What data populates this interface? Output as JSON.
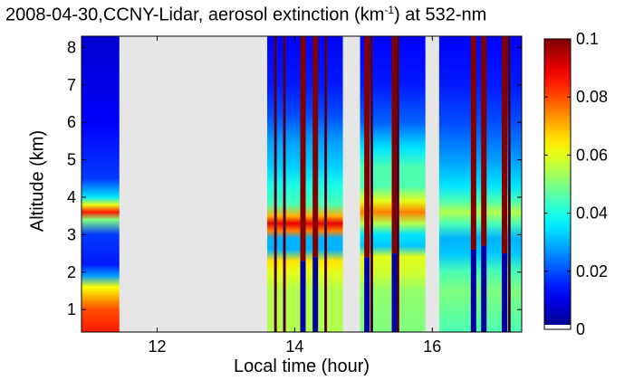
{
  "chart_data": {
    "type": "heatmap",
    "title_parts": {
      "prefix": "2008-04-30,CCNY-Lidar, aerosol extinction (km",
      "superscript": "-1",
      "suffix": ") at 532-nm"
    },
    "xlabel": "Local time (hour)",
    "ylabel": "Altitude (km)",
    "xlim": [
      10.9,
      17.3
    ],
    "ylim": [
      0.4,
      8.3
    ],
    "x_ticks": [
      12,
      14,
      16
    ],
    "y_ticks": [
      1,
      2,
      3,
      4,
      5,
      6,
      7,
      8
    ],
    "colorbar": {
      "range": [
        0,
        0.1
      ],
      "ticks": [
        0,
        0.02,
        0.04,
        0.06,
        0.08,
        0.1
      ],
      "tick_labels": [
        "0",
        "0.02",
        "0.04",
        "0.06",
        "0.08",
        "0.1"
      ],
      "colormap": "jet",
      "below_range_color": "#ffffff"
    },
    "no_data_color": "#e6e6e6",
    "data_segments": [
      {
        "x_start": 10.9,
        "x_end": 11.45,
        "layers": [
          {
            "alt": 0.4,
            "value": 0.085
          },
          {
            "alt": 1.0,
            "value": 0.08
          },
          {
            "alt": 1.6,
            "value": 0.062
          },
          {
            "alt": 1.9,
            "value": 0.028
          },
          {
            "alt": 2.2,
            "value": 0.015
          },
          {
            "alt": 3.0,
            "value": 0.018
          },
          {
            "alt": 3.4,
            "value": 0.05
          },
          {
            "alt": 3.6,
            "value": 0.085
          },
          {
            "alt": 3.8,
            "value": 0.06
          },
          {
            "alt": 4.0,
            "value": 0.035
          },
          {
            "alt": 4.5,
            "value": 0.018
          },
          {
            "alt": 6.0,
            "value": 0.012
          },
          {
            "alt": 8.3,
            "value": 0.008
          }
        ]
      },
      {
        "x_start": 13.6,
        "x_end": 14.7,
        "layers": [
          {
            "alt": 0.4,
            "value": 0.055
          },
          {
            "alt": 1.5,
            "value": 0.055
          },
          {
            "alt": 2.0,
            "value": 0.06
          },
          {
            "alt": 2.3,
            "value": 0.065
          },
          {
            "alt": 2.6,
            "value": 0.03
          },
          {
            "alt": 2.9,
            "value": 0.03
          },
          {
            "alt": 3.1,
            "value": 0.075
          },
          {
            "alt": 3.3,
            "value": 0.09
          },
          {
            "alt": 3.5,
            "value": 0.07
          },
          {
            "alt": 3.8,
            "value": 0.045
          },
          {
            "alt": 4.3,
            "value": 0.04
          },
          {
            "alt": 4.8,
            "value": 0.033
          },
          {
            "alt": 5.5,
            "value": 0.028
          },
          {
            "alt": 6.2,
            "value": 0.02
          },
          {
            "alt": 7.0,
            "value": 0.015
          },
          {
            "alt": 8.3,
            "value": 0.012
          }
        ]
      },
      {
        "x_start": 14.95,
        "x_end": 15.9,
        "layers": [
          {
            "alt": 0.4,
            "value": 0.05
          },
          {
            "alt": 1.5,
            "value": 0.052
          },
          {
            "alt": 2.0,
            "value": 0.058
          },
          {
            "alt": 2.4,
            "value": 0.06
          },
          {
            "alt": 2.7,
            "value": 0.032
          },
          {
            "alt": 3.0,
            "value": 0.035
          },
          {
            "alt": 3.3,
            "value": 0.055
          },
          {
            "alt": 3.6,
            "value": 0.075
          },
          {
            "alt": 3.9,
            "value": 0.06
          },
          {
            "alt": 4.3,
            "value": 0.045
          },
          {
            "alt": 4.8,
            "value": 0.045
          },
          {
            "alt": 5.3,
            "value": 0.035
          },
          {
            "alt": 6.0,
            "value": 0.022
          },
          {
            "alt": 7.0,
            "value": 0.015
          },
          {
            "alt": 8.3,
            "value": 0.012
          }
        ]
      },
      {
        "x_start": 16.1,
        "x_end": 17.3,
        "layers": [
          {
            "alt": 0.4,
            "value": 0.045
          },
          {
            "alt": 1.5,
            "value": 0.05
          },
          {
            "alt": 2.0,
            "value": 0.045
          },
          {
            "alt": 2.5,
            "value": 0.032
          },
          {
            "alt": 2.9,
            "value": 0.03
          },
          {
            "alt": 3.3,
            "value": 0.045
          },
          {
            "alt": 3.6,
            "value": 0.055
          },
          {
            "alt": 3.9,
            "value": 0.045
          },
          {
            "alt": 4.3,
            "value": 0.035
          },
          {
            "alt": 5.0,
            "value": 0.028
          },
          {
            "alt": 6.0,
            "value": 0.02
          },
          {
            "alt": 7.0,
            "value": 0.015
          },
          {
            "alt": 8.3,
            "value": 0.012
          }
        ]
      }
    ],
    "cloud_columns": [
      {
        "x": 13.72,
        "cloud_base": 8.3
      },
      {
        "x": 13.85,
        "cloud_base": 8.3
      },
      {
        "x": 14.12,
        "cloud_base": 2.3
      },
      {
        "x": 14.3,
        "cloud_base": 2.4
      },
      {
        "x": 14.45,
        "cloud_base": 8.3
      },
      {
        "x": 15.05,
        "cloud_base": 2.4
      },
      {
        "x": 15.12,
        "cloud_base": 8.3
      },
      {
        "x": 15.45,
        "cloud_base": 2.5
      },
      {
        "x": 15.5,
        "cloud_base": 8.3
      },
      {
        "x": 16.6,
        "cloud_base": 2.6
      },
      {
        "x": 16.75,
        "cloud_base": 2.7
      },
      {
        "x": 17.05,
        "cloud_base": 2.5
      },
      {
        "x": 17.12,
        "cloud_base": 8.3
      }
    ]
  }
}
